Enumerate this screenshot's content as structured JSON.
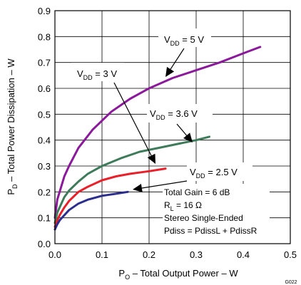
{
  "chart_data": {
    "type": "line",
    "xlabel": "P",
    "xlabel_sub": "O",
    "xlabel_rest": " – Total Output Power – W",
    "ylabel": "P",
    "ylabel_sub": "D",
    "ylabel_rest": " – Total Power Dissipation – W",
    "xlim": [
      0,
      0.5
    ],
    "ylim": [
      0,
      0.9
    ],
    "xticks": [
      "0.0",
      "0.1",
      "0.2",
      "0.3",
      "0.4",
      "0.5"
    ],
    "yticks": [
      "0.0",
      "0.1",
      "0.2",
      "0.3",
      "0.4",
      "0.5",
      "0.6",
      "0.7",
      "0.8",
      "0.9"
    ],
    "xtick_values": [
      0,
      0.1,
      0.2,
      0.3,
      0.4,
      0.5
    ],
    "ytick_values": [
      0,
      0.1,
      0.2,
      0.3,
      0.4,
      0.5,
      0.6,
      0.7,
      0.8,
      0.9
    ],
    "grid": true,
    "series": [
      {
        "label_main": "V",
        "label_sub": "DD",
        "label_rest": " = 5 V",
        "color": "#8B1A9B",
        "x": [
          0.0,
          0.005,
          0.01,
          0.02,
          0.03,
          0.05,
          0.08,
          0.12,
          0.16,
          0.2,
          0.25,
          0.3,
          0.35,
          0.4,
          0.436
        ],
        "y": [
          0.1,
          0.17,
          0.2,
          0.26,
          0.3,
          0.37,
          0.44,
          0.51,
          0.56,
          0.6,
          0.64,
          0.67,
          0.7,
          0.735,
          0.76
        ]
      },
      {
        "label_main": "V",
        "label_sub": "DD",
        "label_rest": " = 3.6 V",
        "color": "#3E7B5A",
        "x": [
          0.0,
          0.005,
          0.01,
          0.02,
          0.03,
          0.05,
          0.07,
          0.1,
          0.14,
          0.18,
          0.22,
          0.26,
          0.3,
          0.328
        ],
        "y": [
          0.08,
          0.12,
          0.14,
          0.18,
          0.205,
          0.24,
          0.27,
          0.3,
          0.33,
          0.355,
          0.37,
          0.385,
          0.4,
          0.413
        ]
      },
      {
        "label_main": "V",
        "label_sub": "DD",
        "label_rest": " = 3 V",
        "color": "#E8202A",
        "x": [
          0.0,
          0.005,
          0.01,
          0.02,
          0.03,
          0.05,
          0.07,
          0.1,
          0.13,
          0.16,
          0.2,
          0.235
        ],
        "y": [
          0.065,
          0.09,
          0.11,
          0.14,
          0.165,
          0.2,
          0.22,
          0.245,
          0.26,
          0.27,
          0.28,
          0.29
        ]
      },
      {
        "label_main": "V",
        "label_sub": "DD",
        "label_rest": " = 2.5 V",
        "color": "#2B2E8C",
        "x": [
          0.0,
          0.005,
          0.01,
          0.02,
          0.03,
          0.05,
          0.07,
          0.1,
          0.13,
          0.155
        ],
        "y": [
          0.055,
          0.075,
          0.09,
          0.11,
          0.13,
          0.155,
          0.17,
          0.185,
          0.193,
          0.2
        ]
      }
    ],
    "annotations": {
      "line1": "Total Gain = 6 dB",
      "line2_main": "R",
      "line2_sub": "L",
      "line2_rest": " = 16 Ω",
      "line3": "Stereo Single-Ended",
      "line4": "Pdiss = PdissL + PdissR"
    },
    "figure_id": "G022"
  }
}
